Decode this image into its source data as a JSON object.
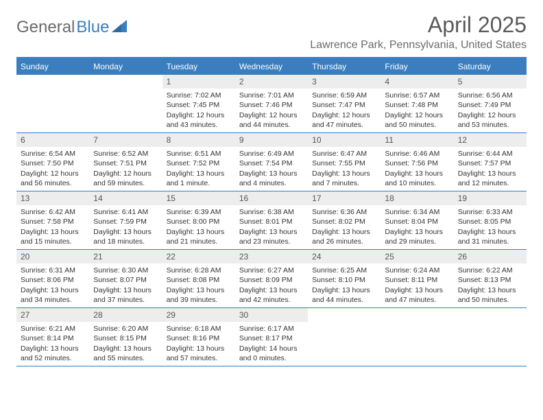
{
  "logo": {
    "part1": "General",
    "part2": "Blue"
  },
  "title": "April 2025",
  "location": "Lawrence Park, Pennsylvania, United States",
  "day_headers": [
    "Sunday",
    "Monday",
    "Tuesday",
    "Wednesday",
    "Thursday",
    "Friday",
    "Saturday"
  ],
  "colors": {
    "accent": "#3a7ebf",
    "header_bg": "#ededed",
    "text": "#333333",
    "muted": "#6a6a6a"
  },
  "weeks": [
    [
      null,
      null,
      {
        "n": "1",
        "sr": "Sunrise: 7:02 AM",
        "ss": "Sunset: 7:45 PM",
        "dl": "Daylight: 12 hours and 43 minutes."
      },
      {
        "n": "2",
        "sr": "Sunrise: 7:01 AM",
        "ss": "Sunset: 7:46 PM",
        "dl": "Daylight: 12 hours and 44 minutes."
      },
      {
        "n": "3",
        "sr": "Sunrise: 6:59 AM",
        "ss": "Sunset: 7:47 PM",
        "dl": "Daylight: 12 hours and 47 minutes."
      },
      {
        "n": "4",
        "sr": "Sunrise: 6:57 AM",
        "ss": "Sunset: 7:48 PM",
        "dl": "Daylight: 12 hours and 50 minutes."
      },
      {
        "n": "5",
        "sr": "Sunrise: 6:56 AM",
        "ss": "Sunset: 7:49 PM",
        "dl": "Daylight: 12 hours and 53 minutes."
      }
    ],
    [
      {
        "n": "6",
        "sr": "Sunrise: 6:54 AM",
        "ss": "Sunset: 7:50 PM",
        "dl": "Daylight: 12 hours and 56 minutes."
      },
      {
        "n": "7",
        "sr": "Sunrise: 6:52 AM",
        "ss": "Sunset: 7:51 PM",
        "dl": "Daylight: 12 hours and 59 minutes."
      },
      {
        "n": "8",
        "sr": "Sunrise: 6:51 AM",
        "ss": "Sunset: 7:52 PM",
        "dl": "Daylight: 13 hours and 1 minute."
      },
      {
        "n": "9",
        "sr": "Sunrise: 6:49 AM",
        "ss": "Sunset: 7:54 PM",
        "dl": "Daylight: 13 hours and 4 minutes."
      },
      {
        "n": "10",
        "sr": "Sunrise: 6:47 AM",
        "ss": "Sunset: 7:55 PM",
        "dl": "Daylight: 13 hours and 7 minutes."
      },
      {
        "n": "11",
        "sr": "Sunrise: 6:46 AM",
        "ss": "Sunset: 7:56 PM",
        "dl": "Daylight: 13 hours and 10 minutes."
      },
      {
        "n": "12",
        "sr": "Sunrise: 6:44 AM",
        "ss": "Sunset: 7:57 PM",
        "dl": "Daylight: 13 hours and 12 minutes."
      }
    ],
    [
      {
        "n": "13",
        "sr": "Sunrise: 6:42 AM",
        "ss": "Sunset: 7:58 PM",
        "dl": "Daylight: 13 hours and 15 minutes."
      },
      {
        "n": "14",
        "sr": "Sunrise: 6:41 AM",
        "ss": "Sunset: 7:59 PM",
        "dl": "Daylight: 13 hours and 18 minutes."
      },
      {
        "n": "15",
        "sr": "Sunrise: 6:39 AM",
        "ss": "Sunset: 8:00 PM",
        "dl": "Daylight: 13 hours and 21 minutes."
      },
      {
        "n": "16",
        "sr": "Sunrise: 6:38 AM",
        "ss": "Sunset: 8:01 PM",
        "dl": "Daylight: 13 hours and 23 minutes."
      },
      {
        "n": "17",
        "sr": "Sunrise: 6:36 AM",
        "ss": "Sunset: 8:02 PM",
        "dl": "Daylight: 13 hours and 26 minutes."
      },
      {
        "n": "18",
        "sr": "Sunrise: 6:34 AM",
        "ss": "Sunset: 8:04 PM",
        "dl": "Daylight: 13 hours and 29 minutes."
      },
      {
        "n": "19",
        "sr": "Sunrise: 6:33 AM",
        "ss": "Sunset: 8:05 PM",
        "dl": "Daylight: 13 hours and 31 minutes."
      }
    ],
    [
      {
        "n": "20",
        "sr": "Sunrise: 6:31 AM",
        "ss": "Sunset: 8:06 PM",
        "dl": "Daylight: 13 hours and 34 minutes."
      },
      {
        "n": "21",
        "sr": "Sunrise: 6:30 AM",
        "ss": "Sunset: 8:07 PM",
        "dl": "Daylight: 13 hours and 37 minutes."
      },
      {
        "n": "22",
        "sr": "Sunrise: 6:28 AM",
        "ss": "Sunset: 8:08 PM",
        "dl": "Daylight: 13 hours and 39 minutes."
      },
      {
        "n": "23",
        "sr": "Sunrise: 6:27 AM",
        "ss": "Sunset: 8:09 PM",
        "dl": "Daylight: 13 hours and 42 minutes."
      },
      {
        "n": "24",
        "sr": "Sunrise: 6:25 AM",
        "ss": "Sunset: 8:10 PM",
        "dl": "Daylight: 13 hours and 44 minutes."
      },
      {
        "n": "25",
        "sr": "Sunrise: 6:24 AM",
        "ss": "Sunset: 8:11 PM",
        "dl": "Daylight: 13 hours and 47 minutes."
      },
      {
        "n": "26",
        "sr": "Sunrise: 6:22 AM",
        "ss": "Sunset: 8:13 PM",
        "dl": "Daylight: 13 hours and 50 minutes."
      }
    ],
    [
      {
        "n": "27",
        "sr": "Sunrise: 6:21 AM",
        "ss": "Sunset: 8:14 PM",
        "dl": "Daylight: 13 hours and 52 minutes."
      },
      {
        "n": "28",
        "sr": "Sunrise: 6:20 AM",
        "ss": "Sunset: 8:15 PM",
        "dl": "Daylight: 13 hours and 55 minutes."
      },
      {
        "n": "29",
        "sr": "Sunrise: 6:18 AM",
        "ss": "Sunset: 8:16 PM",
        "dl": "Daylight: 13 hours and 57 minutes."
      },
      {
        "n": "30",
        "sr": "Sunrise: 6:17 AM",
        "ss": "Sunset: 8:17 PM",
        "dl": "Daylight: 14 hours and 0 minutes."
      },
      null,
      null,
      null
    ]
  ]
}
